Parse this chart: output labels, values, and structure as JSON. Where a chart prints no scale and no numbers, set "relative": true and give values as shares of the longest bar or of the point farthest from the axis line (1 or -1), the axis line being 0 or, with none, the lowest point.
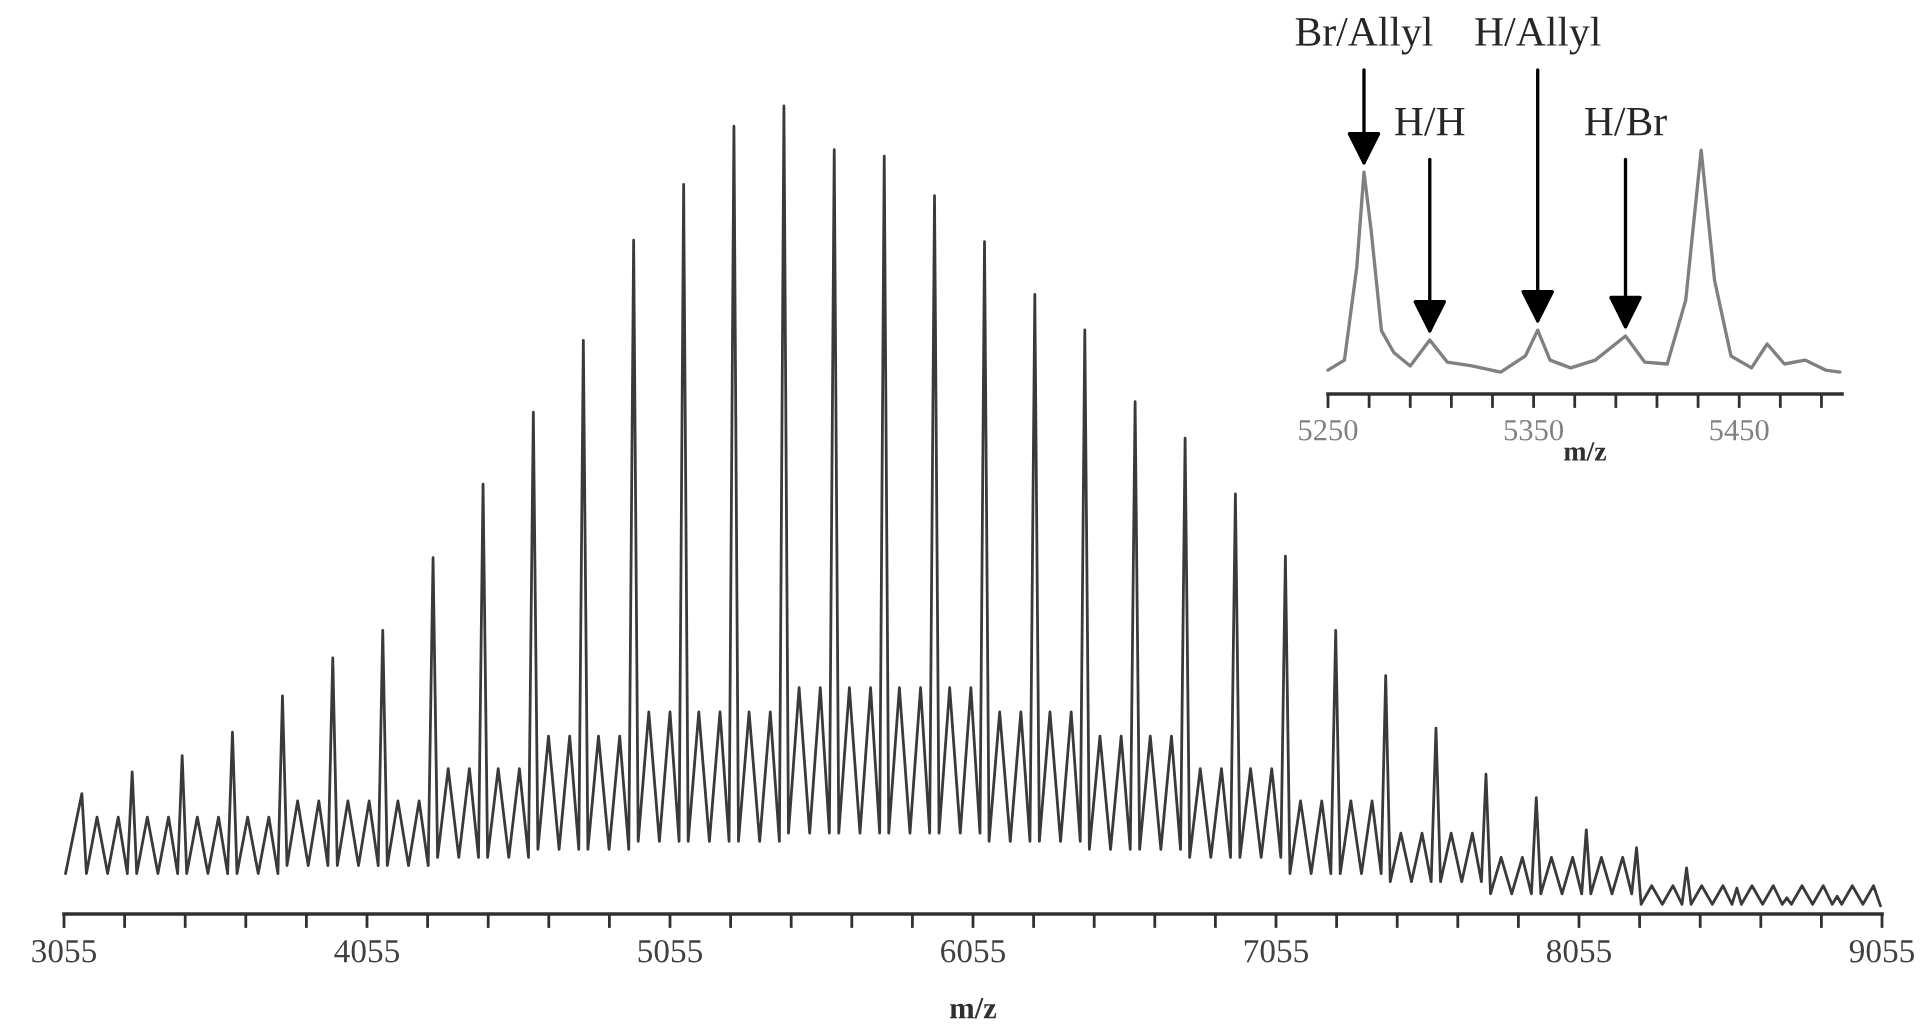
{
  "chart_data": [
    {
      "type": "line",
      "relative": true,
      "xlabel": "m/z",
      "tick_labels": "x",
      "xlim": [
        3055,
        9055
      ],
      "xticks": [
        3055,
        {
          "value": 3255,
          "label": null
        },
        {
          "value": 3455,
          "label": null
        },
        {
          "value": 3655,
          "label": null
        },
        {
          "value": 3855,
          "label": null
        },
        4055,
        {
          "value": 4255,
          "label": null
        },
        {
          "value": 4455,
          "label": null
        },
        {
          "value": 4655,
          "label": null
        },
        {
          "value": 4855,
          "label": null
        },
        5055,
        {
          "value": 5255,
          "label": null
        },
        {
          "value": 5455,
          "label": null
        },
        {
          "value": 5655,
          "label": null
        },
        {
          "value": 5855,
          "label": null
        },
        6055,
        {
          "value": 6255,
          "label": null
        },
        {
          "value": 6455,
          "label": null
        },
        {
          "value": 6655,
          "label": null
        },
        {
          "value": 6855,
          "label": null
        },
        7055,
        {
          "value": 7255,
          "label": null
        },
        {
          "value": 7455,
          "label": null
        },
        {
          "value": 7655,
          "label": null
        },
        {
          "value": 7855,
          "label": null
        },
        8055,
        {
          "value": 8255,
          "label": null
        },
        {
          "value": 8455,
          "label": null
        },
        {
          "value": 8655,
          "label": null
        },
        {
          "value": 8855,
          "label": null
        },
        9055
      ],
      "x": [
        3060,
        3098,
        3114,
        3129,
        3164,
        3199,
        3234,
        3264,
        3280,
        3295,
        3330,
        3365,
        3400,
        3430,
        3445,
        3460,
        3495,
        3530,
        3565,
        3595,
        3611,
        3626,
        3661,
        3696,
        3731,
        3761,
        3776,
        3791,
        3826,
        3861,
        3896,
        3926,
        3942,
        3957,
        3992,
        4027,
        4062,
        4092,
        4107,
        4122,
        4157,
        4192,
        4227,
        4257,
        4273,
        4288,
        4323,
        4358,
        4393,
        4423,
        4438,
        4453,
        4488,
        4523,
        4558,
        4588,
        4604,
        4619,
        4654,
        4689,
        4724,
        4754,
        4769,
        4784,
        4819,
        4854,
        4889,
        4919,
        4935,
        4950,
        4985,
        5020,
        5055,
        5085,
        5100,
        5115,
        5150,
        5185,
        5220,
        5250,
        5266,
        5281,
        5316,
        5351,
        5386,
        5416,
        5431,
        5446,
        5481,
        5516,
        5551,
        5581,
        5597,
        5612,
        5647,
        5682,
        5717,
        5747,
        5762,
        5777,
        5812,
        5847,
        5882,
        5912,
        5928,
        5943,
        5978,
        6013,
        6048,
        6078,
        6093,
        6108,
        6143,
        6178,
        6213,
        6243,
        6259,
        6274,
        6309,
        6344,
        6379,
        6409,
        6424,
        6439,
        6474,
        6509,
        6544,
        6574,
        6590,
        6605,
        6640,
        6675,
        6710,
        6740,
        6755,
        6770,
        6805,
        6840,
        6875,
        6905,
        6921,
        6936,
        6971,
        7006,
        7041,
        7071,
        7086,
        7101,
        7136,
        7171,
        7206,
        7236,
        7252,
        7267,
        7302,
        7337,
        7372,
        7402,
        7417,
        7432,
        7467,
        7502,
        7537,
        7567,
        7583,
        7598,
        7633,
        7668,
        7703,
        7733,
        7748,
        7763,
        7798,
        7833,
        7868,
        7898,
        7914,
        7929,
        7964,
        7999,
        8034,
        8064,
        8079,
        8094,
        8129,
        8164,
        8199,
        8229,
        8245,
        8260,
        8295,
        8330,
        8365,
        8395,
        8410,
        8425,
        8460,
        8495,
        8530,
        8560,
        8576,
        8591,
        8626,
        8661,
        8696,
        8726,
        8741,
        8756,
        8791,
        8826,
        8861,
        8891,
        8907,
        8922,
        8957,
        8992,
        9027,
        9050
      ],
      "series": [
        {
          "color": "#3a3a3a",
          "values": [
            0.05,
            0.12,
            0.149,
            0.05,
            0.12,
            0.05,
            0.12,
            0.05,
            0.176,
            0.05,
            0.12,
            0.05,
            0.12,
            0.05,
            0.196,
            0.05,
            0.12,
            0.05,
            0.12,
            0.05,
            0.225,
            0.05,
            0.12,
            0.05,
            0.12,
            0.05,
            0.27,
            0.06,
            0.14,
            0.06,
            0.14,
            0.06,
            0.317,
            0.06,
            0.14,
            0.06,
            0.14,
            0.06,
            0.351,
            0.06,
            0.14,
            0.06,
            0.14,
            0.06,
            0.441,
            0.07,
            0.18,
            0.07,
            0.18,
            0.07,
            0.532,
            0.07,
            0.18,
            0.07,
            0.18,
            0.07,
            0.621,
            0.08,
            0.22,
            0.08,
            0.22,
            0.08,
            0.71,
            0.08,
            0.22,
            0.08,
            0.22,
            0.08,
            0.834,
            0.09,
            0.25,
            0.09,
            0.25,
            0.09,
            0.903,
            0.09,
            0.25,
            0.09,
            0.25,
            0.09,
            0.975,
            0.09,
            0.25,
            0.09,
            0.25,
            0.09,
            1,
            0.1,
            0.28,
            0.1,
            0.28,
            0.1,
            0.946,
            0.1,
            0.28,
            0.1,
            0.28,
            0.1,
            0.938,
            0.1,
            0.28,
            0.1,
            0.28,
            0.1,
            0.889,
            0.1,
            0.28,
            0.1,
            0.28,
            0.1,
            0.832,
            0.09,
            0.25,
            0.09,
            0.25,
            0.09,
            0.767,
            0.09,
            0.25,
            0.09,
            0.25,
            0.09,
            0.723,
            0.08,
            0.22,
            0.08,
            0.22,
            0.08,
            0.634,
            0.08,
            0.22,
            0.08,
            0.22,
            0.08,
            0.589,
            0.07,
            0.18,
            0.07,
            0.18,
            0.07,
            0.52,
            0.07,
            0.18,
            0.07,
            0.18,
            0.07,
            0.443,
            0.05,
            0.14,
            0.05,
            0.14,
            0.05,
            0.351,
            0.05,
            0.14,
            0.05,
            0.14,
            0.05,
            0.295,
            0.04,
            0.1,
            0.04,
            0.1,
            0.04,
            0.23,
            0.04,
            0.1,
            0.04,
            0.1,
            0.04,
            0.173,
            0.025,
            0.07,
            0.025,
            0.07,
            0.025,
            0.144,
            0.025,
            0.07,
            0.025,
            0.07,
            0.025,
            0.104,
            0.025,
            0.07,
            0.025,
            0.07,
            0.025,
            0.082,
            0.012,
            0.035,
            0.012,
            0.035,
            0.012,
            0.057,
            0.012,
            0.035,
            0.012,
            0.035,
            0.012,
            0.032,
            0.012,
            0.035,
            0.012,
            0.035,
            0.012,
            0.02,
            0.012,
            0.035,
            0.012,
            0.035,
            0.012,
            0.022,
            0.012,
            0.035,
            0.012,
            0.035,
            0.01
          ]
        }
      ]
    },
    {
      "type": "line",
      "relative": true,
      "xlabel": "m/z",
      "tick_labels": "x",
      "xlim": [
        5250,
        5500
      ],
      "xticks": [
        5250,
        {
          "value": 5270,
          "label": null
        },
        {
          "value": 5290,
          "label": null
        },
        {
          "value": 5310,
          "label": null
        },
        {
          "value": 5330,
          "label": null
        },
        5350,
        {
          "value": 5370,
          "label": null
        },
        {
          "value": 5390,
          "label": null
        },
        {
          "value": 5410,
          "label": null
        },
        {
          "value": 5430,
          "label": null
        },
        5450,
        {
          "value": 5470,
          "label": null
        },
        {
          "value": 5490,
          "label": null
        }
      ],
      "x": [
        5250,
        5258,
        5264,
        5267.5,
        5271,
        5276,
        5282,
        5290,
        5299.5,
        5308,
        5320,
        5334,
        5346,
        5352,
        5358,
        5368,
        5380,
        5394.7,
        5404,
        5415,
        5424,
        5431.5,
        5438,
        5446,
        5456,
        5463.6,
        5472,
        5482,
        5492,
        5499
      ],
      "series": [
        {
          "color": "#808080",
          "values": [
            0.098,
            0.139,
            0.52,
            0.91,
            0.67,
            0.26,
            0.17,
            0.115,
            0.221,
            0.131,
            0.115,
            0.09,
            0.156,
            0.262,
            0.139,
            0.107,
            0.139,
            0.238,
            0.131,
            0.123,
            0.385,
            1,
            0.467,
            0.156,
            0.107,
            0.205,
            0.123,
            0.139,
            0.098,
            0.09
          ]
        }
      ],
      "annotations": [
        {
          "text": "Br/Allyl",
          "x": 5267.5,
          "y": 0.91
        },
        {
          "text": "H/H",
          "x": 5299.5,
          "y": 0.221
        },
        {
          "text": "H/Allyl",
          "x": 5352,
          "y": 0.262
        },
        {
          "text": "H/Br",
          "x": 5394.7,
          "y": 0.238
        }
      ]
    }
  ]
}
